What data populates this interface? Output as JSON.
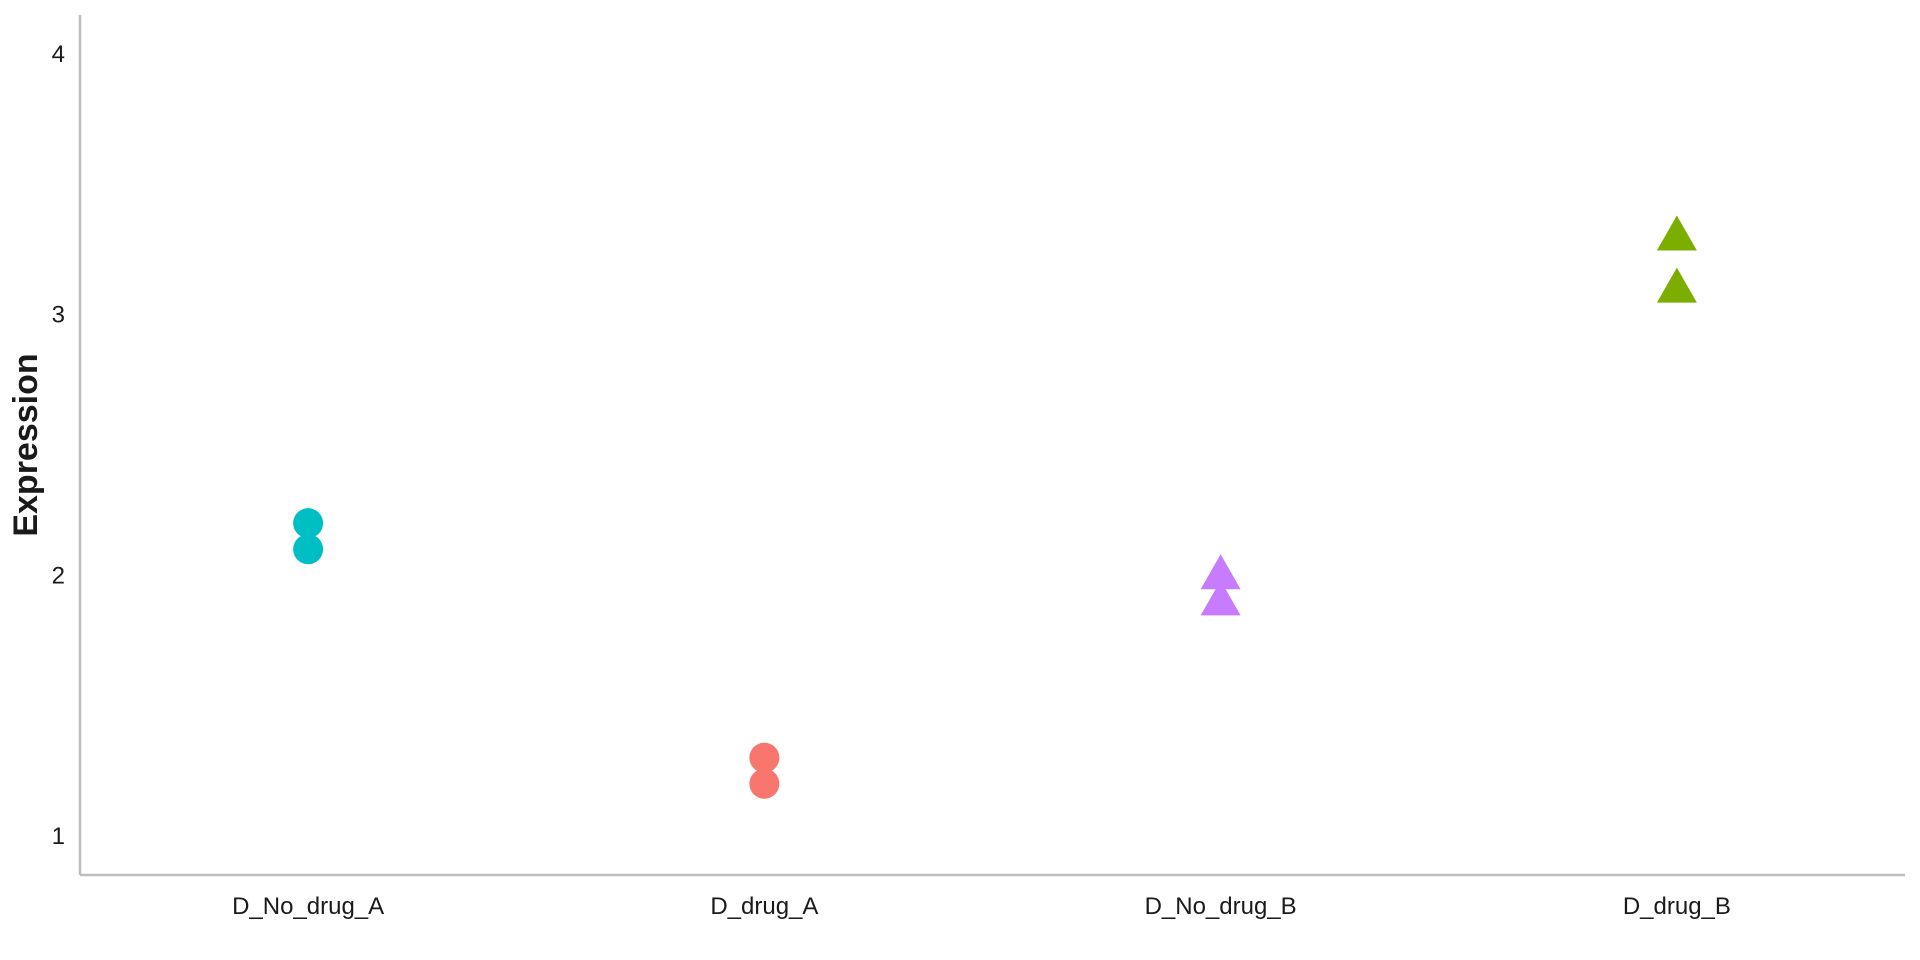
{
  "chart_data": {
    "type": "scatter",
    "title": "",
    "xlabel": "",
    "ylabel": "Expression",
    "categories": [
      "D_No_drug_A",
      "D_drug_A",
      "D_No_drug_B",
      "D_drug_B"
    ],
    "ylim": [
      0.85,
      4.15
    ],
    "yticks": [
      1,
      2,
      3,
      4
    ],
    "grid": false,
    "points": [
      {
        "category": "D_No_drug_A",
        "y": 2.2,
        "shape": "circle",
        "color": "#00BFC4"
      },
      {
        "category": "D_No_drug_A",
        "y": 2.1,
        "shape": "circle",
        "color": "#00BFC4"
      },
      {
        "category": "D_drug_A",
        "y": 1.3,
        "shape": "circle",
        "color": "#F8766D"
      },
      {
        "category": "D_drug_A",
        "y": 1.2,
        "shape": "circle",
        "color": "#F8766D"
      },
      {
        "category": "D_No_drug_B",
        "y": 2.0,
        "shape": "triangle",
        "color": "#C77CFF"
      },
      {
        "category": "D_No_drug_B",
        "y": 1.9,
        "shape": "triangle",
        "color": "#C77CFF"
      },
      {
        "category": "D_drug_B",
        "y": 3.3,
        "shape": "triangle",
        "color": "#7CAE00"
      },
      {
        "category": "D_drug_B",
        "y": 3.1,
        "shape": "triangle",
        "color": "#7CAE00"
      }
    ]
  }
}
